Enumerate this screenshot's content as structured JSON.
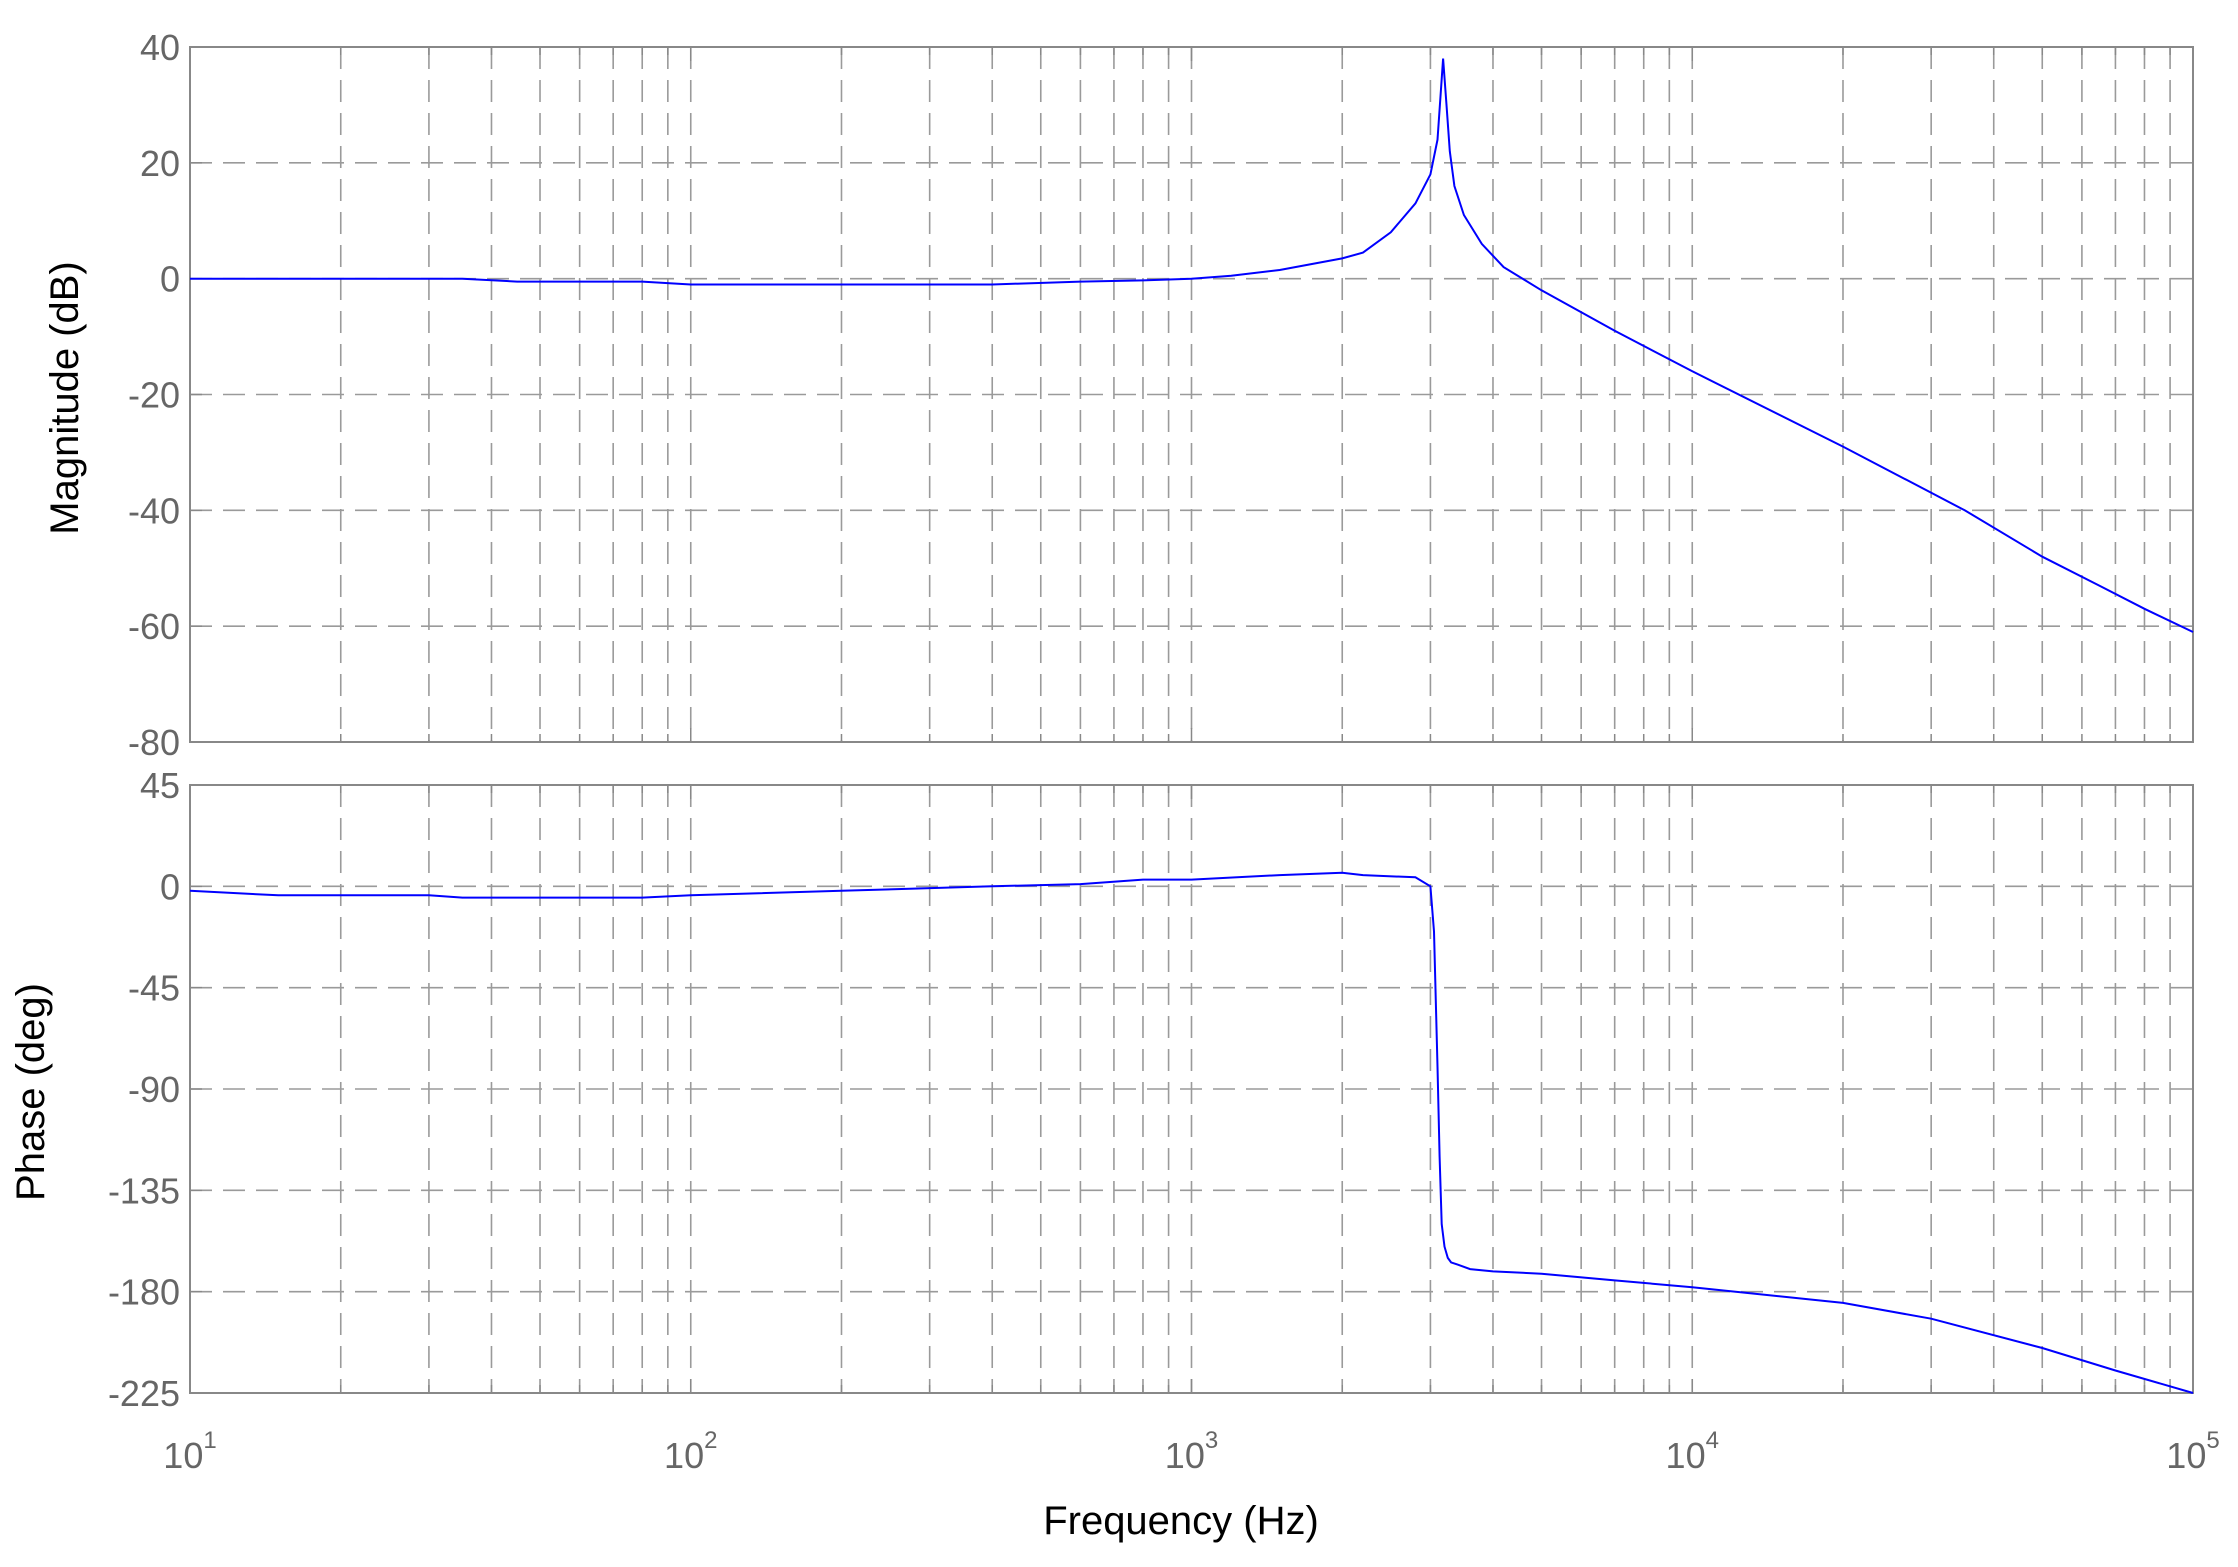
{
  "chart_data": [
    {
      "type": "line",
      "ylabel": "Magnitude (dB)",
      "xscale": "log",
      "xlim": [
        10,
        100000
      ],
      "ylim": [
        -80,
        40
      ],
      "yticks": [
        "40",
        "20",
        "0",
        "-20",
        "-40",
        "-60",
        "-80"
      ],
      "ytick_values": [
        40,
        20,
        0,
        -20,
        -40,
        -60,
        -80
      ],
      "grid": true,
      "line_color": "#0000ff",
      "series": [
        {
          "x": [
            10,
            20,
            35,
            45,
            60,
            80,
            100,
            200,
            400,
            600,
            800,
            1000,
            1200,
            1500,
            2000,
            2200,
            2500,
            2800,
            3000,
            3100,
            3180,
            3230,
            3280,
            3350,
            3500,
            3800,
            4200,
            5000,
            7000,
            10000,
            20000,
            35000,
            50000,
            65000,
            80000,
            100000
          ],
          "y": [
            0,
            0,
            0,
            -0.5,
            -0.5,
            -0.5,
            -1,
            -1,
            -1,
            -0.5,
            -0.3,
            0,
            0.5,
            1.5,
            3.5,
            4.5,
            8,
            13,
            18,
            24,
            38,
            30,
            22,
            16,
            11,
            6,
            2,
            -2,
            -9,
            -16,
            -29,
            -40,
            -48,
            -53,
            -57,
            -61
          ]
        }
      ]
    },
    {
      "type": "line",
      "ylabel": "Phase (deg)",
      "xlabel": "Frequency (Hz)",
      "xscale": "log",
      "xlim": [
        10,
        100000
      ],
      "ylim": [
        -225,
        45
      ],
      "yticks": [
        "45",
        "0",
        "-45",
        "-90",
        "-135",
        "-180",
        "-225"
      ],
      "ytick_values": [
        45,
        0,
        -45,
        -90,
        -135,
        -180,
        -225
      ],
      "xticks": [
        {
          "base": "10",
          "exp": "1"
        },
        {
          "base": "10",
          "exp": "2"
        },
        {
          "base": "10",
          "exp": "3"
        },
        {
          "base": "10",
          "exp": "4"
        },
        {
          "base": "10",
          "exp": "5"
        }
      ],
      "xtick_values": [
        10,
        100,
        1000,
        10000,
        100000
      ],
      "grid": true,
      "line_color": "#0000ff",
      "series": [
        {
          "x": [
            10,
            15,
            30,
            35,
            80,
            100,
            200,
            400,
            600,
            800,
            1000,
            1500,
            2000,
            2200,
            2800,
            3000,
            3050,
            3100,
            3130,
            3160,
            3200,
            3250,
            3300,
            3400,
            3600,
            4000,
            5000,
            7000,
            10000,
            20000,
            30000,
            50000,
            70000,
            100000
          ],
          "y": [
            -2,
            -4,
            -4,
            -5,
            -5,
            -4,
            -2,
            0,
            1,
            3,
            3,
            5,
            6,
            5,
            4,
            0,
            -20,
            -80,
            -120,
            -150,
            -160,
            -165,
            -167,
            -168,
            -170,
            -171,
            -172,
            -175,
            -178,
            -185,
            -192,
            -205,
            -215,
            -225
          ]
        }
      ]
    }
  ]
}
